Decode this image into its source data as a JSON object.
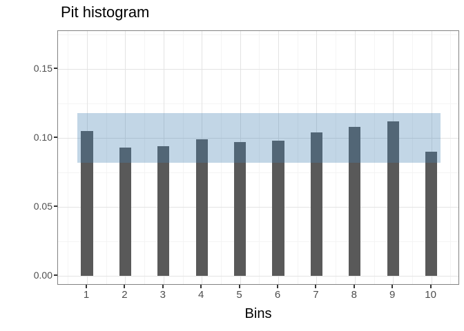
{
  "chart_data": {
    "type": "bar",
    "title": "Pit histogram",
    "xlabel": "Bins",
    "ylabel": "",
    "categories": [
      "1",
      "2",
      "3",
      "4",
      "5",
      "6",
      "7",
      "8",
      "9",
      "10"
    ],
    "values": [
      0.105,
      0.093,
      0.094,
      0.099,
      0.097,
      0.098,
      0.104,
      0.108,
      0.112,
      0.09
    ],
    "band": {
      "ymin": 0.082,
      "ymax": 0.118,
      "xmin": 0.75,
      "xmax": 10.25
    },
    "bar_width": 0.31,
    "y_ticks": [
      0,
      0.05,
      0.1,
      0.15
    ],
    "y_tick_labels": [
      "0.00",
      "0.05",
      "0.10",
      "0.15"
    ],
    "y_minor_ticks": [
      0.025,
      0.075,
      0.125,
      0.175
    ],
    "x_minor_ticks": [
      0.5,
      1.5,
      2.5,
      3.5,
      4.5,
      5.5,
      6.5,
      7.5,
      8.5,
      9.5,
      10.5
    ],
    "xlim": [
      0.242,
      10.747
    ],
    "ylim": [
      -0.007,
      0.1775
    ],
    "grid": "major+minor",
    "legend": false,
    "colors": {
      "bar": "#595959",
      "band": "#4682B4",
      "band_opacity": 0.33,
      "grid_major": "#e3e3e3",
      "grid_minor": "#f4f4f4",
      "panel_border": "#818181",
      "tick": "#333333",
      "tick_label": "#4d4d4d",
      "title": "#000000"
    }
  }
}
